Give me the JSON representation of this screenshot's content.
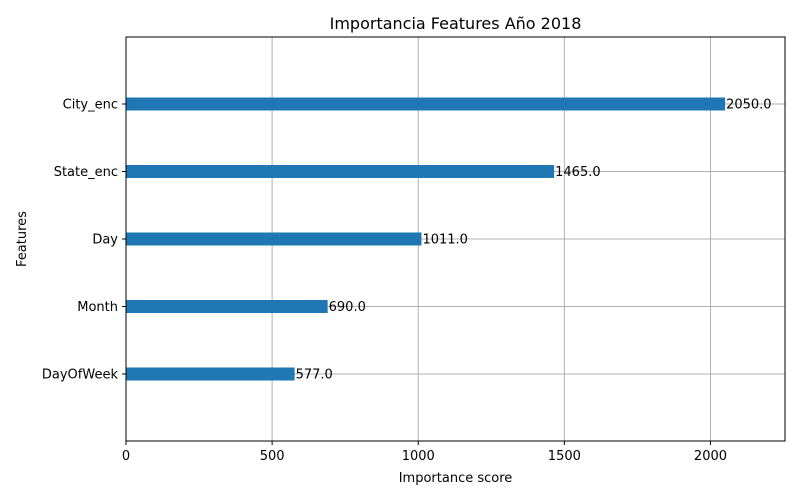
{
  "chart_data": {
    "type": "bar",
    "orientation": "horizontal",
    "title": "Importancia Features Año 2018",
    "xlabel": "Importance score",
    "ylabel": "Features",
    "categories": [
      "DayOfWeek",
      "Month",
      "Day",
      "State_enc",
      "City_enc"
    ],
    "values": [
      577.0,
      690.0,
      1011.0,
      1465.0,
      2050.0
    ],
    "value_labels": [
      "577.0",
      "690.0",
      "1011.0",
      "1465.0",
      "2050.0"
    ],
    "xlim": [
      0,
      2255
    ],
    "xticks": [
      0,
      500,
      1000,
      1500,
      2000
    ],
    "xtick_labels": [
      "0",
      "500",
      "1000",
      "1500",
      "2000"
    ],
    "grid": true,
    "bar_color": "#1f77b4"
  }
}
